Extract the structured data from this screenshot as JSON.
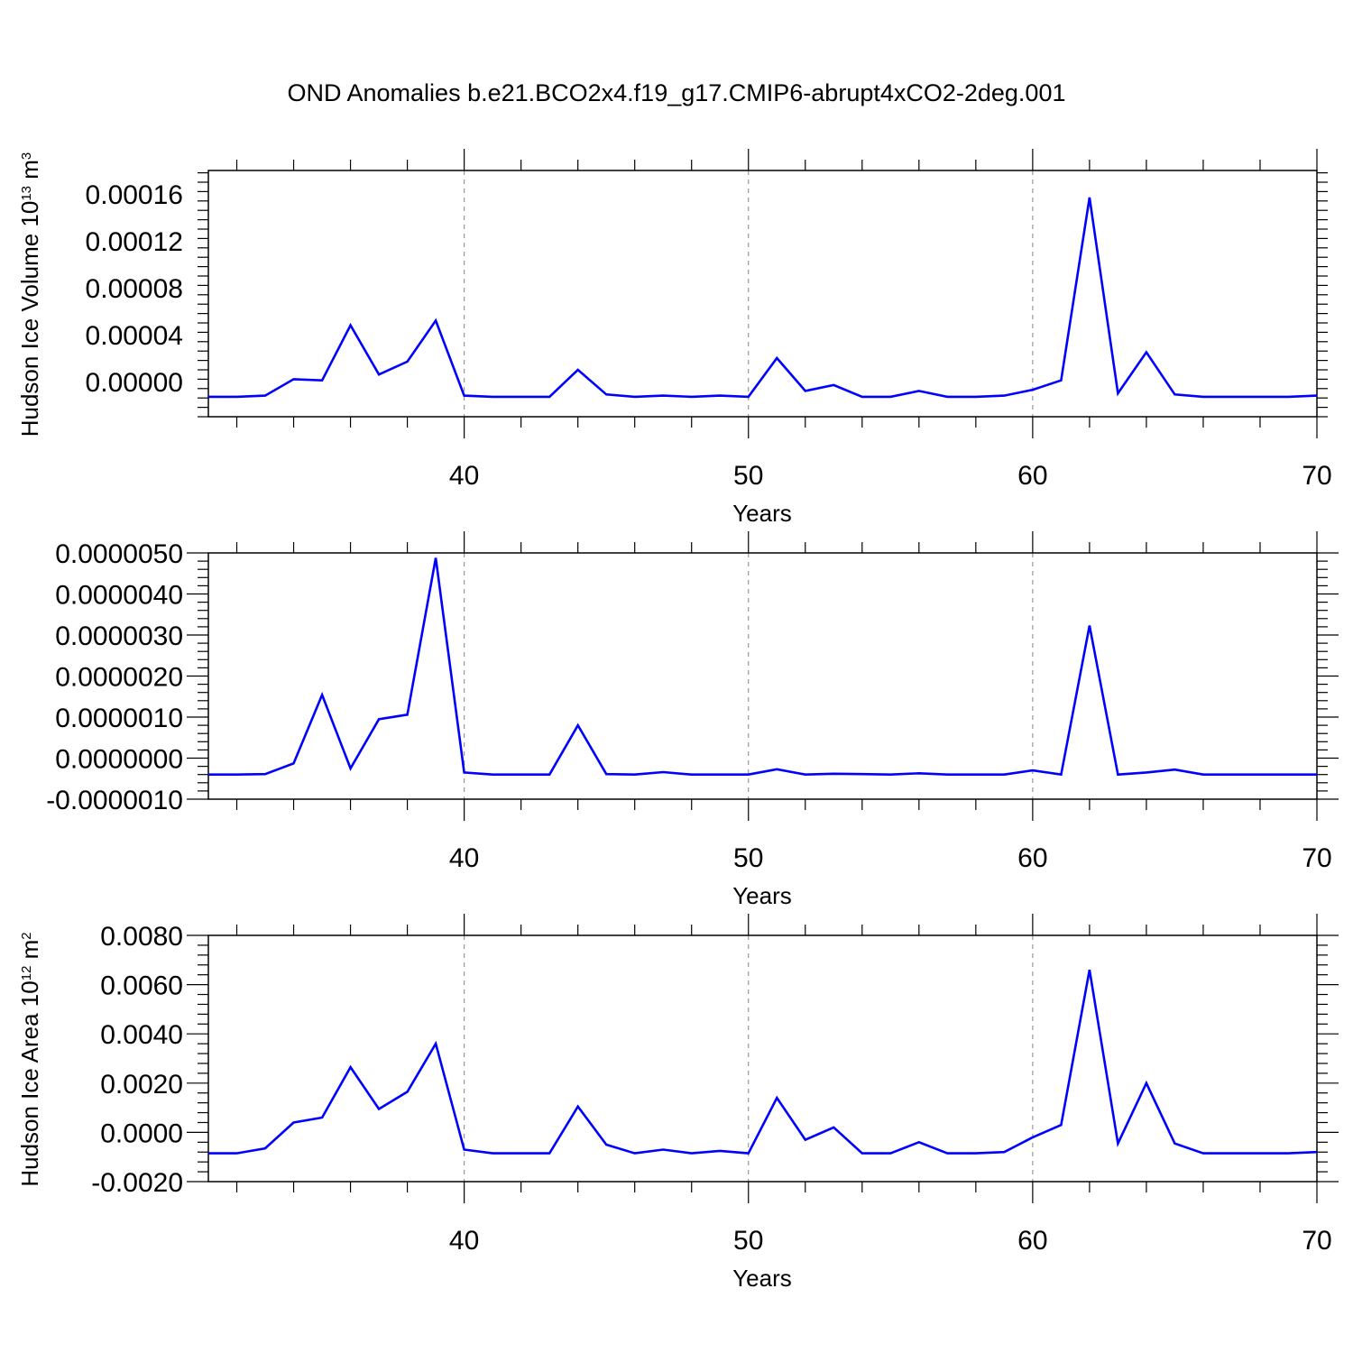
{
  "title": "OND Anomalies b.e21.BCO2x4.f19_g17.CMIP6-abrupt4xCO2-2deg.001",
  "colors": {
    "line": "#0000ff",
    "grid": "#999999",
    "axis": "#000000"
  },
  "chart_data": [
    {
      "type": "line",
      "ylabel": "Hudson Ice Volume 10",
      "ylabel_exp": "13",
      "ylabel_unit": " m",
      "ylabel_unit_exp": "3",
      "xlabel": "Years",
      "xlim": [
        31,
        70
      ],
      "ylim": [
        -3e-05,
        0.00018
      ],
      "yticks": [
        0.0,
        4e-05,
        8e-05,
        0.00012,
        0.00016
      ],
      "ytick_labels": [
        "0.00000",
        "0.00004",
        "0.00008",
        "0.00012",
        "0.00016"
      ],
      "xticks": [
        40,
        50,
        60,
        70
      ],
      "xtick_labels": [
        "40",
        "50",
        "60",
        "70"
      ],
      "grid_x": [
        40,
        50,
        60
      ],
      "x": [
        31,
        32,
        33,
        34,
        35,
        36,
        37,
        38,
        39,
        40,
        41,
        42,
        43,
        44,
        45,
        46,
        47,
        48,
        49,
        50,
        51,
        52,
        53,
        54,
        55,
        56,
        57,
        58,
        59,
        60,
        61,
        62,
        63,
        64,
        65,
        66,
        67,
        68,
        69,
        70
      ],
      "series": [
        {
          "values": [
            -1.3e-05,
            -1.3e-05,
            -1.2e-05,
            2e-06,
            1e-06,
            4.8e-05,
            6e-06,
            1.7e-05,
            5.2e-05,
            -1.2e-05,
            -1.3e-05,
            -1.3e-05,
            -1.3e-05,
            1e-05,
            -1.1e-05,
            -1.3e-05,
            -1.2e-05,
            -1.3e-05,
            -1.2e-05,
            -1.3e-05,
            2e-05,
            -8e-06,
            -3e-06,
            -1.3e-05,
            -1.3e-05,
            -8e-06,
            -1.3e-05,
            -1.3e-05,
            -1.2e-05,
            -7e-06,
            1e-06,
            0.000157,
            -1e-05,
            2.5e-05,
            -1.1e-05,
            -1.3e-05,
            -1.3e-05,
            -1.3e-05,
            -1.3e-05,
            -1.2e-05
          ]
        }
      ]
    },
    {
      "type": "line",
      "ylabel": "",
      "xlabel": "Years",
      "xlim": [
        31,
        70
      ],
      "ylim": [
        -1e-06,
        5e-06
      ],
      "yticks": [
        -1e-06,
        0.0,
        1e-06,
        2e-06,
        3e-06,
        4e-06,
        5e-06
      ],
      "ytick_labels": [
        "-0.0000010",
        "0.0000000",
        "0.0000010",
        "0.0000020",
        "0.0000030",
        "0.0000040",
        "0.0000050"
      ],
      "xticks": [
        40,
        50,
        60,
        70
      ],
      "xtick_labels": [
        "40",
        "50",
        "60",
        "70"
      ],
      "grid_x": [
        40,
        50,
        60
      ],
      "x": [
        31,
        32,
        33,
        34,
        35,
        36,
        37,
        38,
        39,
        40,
        41,
        42,
        43,
        44,
        45,
        46,
        47,
        48,
        49,
        50,
        51,
        52,
        53,
        54,
        55,
        56,
        57,
        58,
        59,
        60,
        61,
        62,
        63,
        64,
        65,
        66,
        67,
        68,
        69,
        70
      ],
      "series": [
        {
          "values": [
            -4e-07,
            -4e-07,
            -3.9e-07,
            -1.3e-07,
            1.54e-06,
            -2.5e-07,
            9.5e-07,
            1.06e-06,
            4.88e-06,
            -3.5e-07,
            -4e-07,
            -4e-07,
            -4e-07,
            8e-07,
            -3.9e-07,
            -4e-07,
            -3.4e-07,
            -4e-07,
            -4e-07,
            -4e-07,
            -2.7e-07,
            -4e-07,
            -3.8e-07,
            -3.9e-07,
            -4e-07,
            -3.7e-07,
            -4e-07,
            -4e-07,
            -4e-07,
            -3e-07,
            -4e-07,
            3.23e-06,
            -4e-07,
            -3.5e-07,
            -2.8e-07,
            -4e-07,
            -4e-07,
            -4e-07,
            -4e-07,
            -4e-07
          ]
        }
      ]
    },
    {
      "type": "line",
      "ylabel": "Hudson Ice Area 10",
      "ylabel_exp": "12",
      "ylabel_unit": " m",
      "ylabel_unit_exp": "2",
      "xlabel": "Years",
      "xlim": [
        31,
        70
      ],
      "ylim": [
        -0.002,
        0.008
      ],
      "yticks": [
        -0.002,
        0.0,
        0.002,
        0.004,
        0.006,
        0.008
      ],
      "ytick_labels": [
        "-0.0020",
        "0.0000",
        "0.0020",
        "0.0040",
        "0.0060",
        "0.0080"
      ],
      "xticks": [
        40,
        50,
        60,
        70
      ],
      "xtick_labels": [
        "40",
        "50",
        "60",
        "70"
      ],
      "grid_x": [
        40,
        50,
        60
      ],
      "x": [
        31,
        32,
        33,
        34,
        35,
        36,
        37,
        38,
        39,
        40,
        41,
        42,
        43,
        44,
        45,
        46,
        47,
        48,
        49,
        50,
        51,
        52,
        53,
        54,
        55,
        56,
        57,
        58,
        59,
        60,
        61,
        62,
        63,
        64,
        65,
        66,
        67,
        68,
        69,
        70
      ],
      "series": [
        {
          "values": [
            -0.00085,
            -0.00085,
            -0.00065,
            0.0004,
            0.0006,
            0.00265,
            0.00095,
            0.00165,
            0.0036,
            -0.0007,
            -0.00085,
            -0.00085,
            -0.00085,
            0.00105,
            -0.0005,
            -0.00085,
            -0.0007,
            -0.00085,
            -0.00075,
            -0.00085,
            0.0014,
            -0.0003,
            0.0002,
            -0.00085,
            -0.00085,
            -0.0004,
            -0.00085,
            -0.00085,
            -0.0008,
            -0.0002,
            0.0003,
            0.0066,
            -0.00045,
            0.002,
            -0.00045,
            -0.00085,
            -0.00085,
            -0.00085,
            -0.00085,
            -0.0008
          ]
        }
      ]
    }
  ]
}
